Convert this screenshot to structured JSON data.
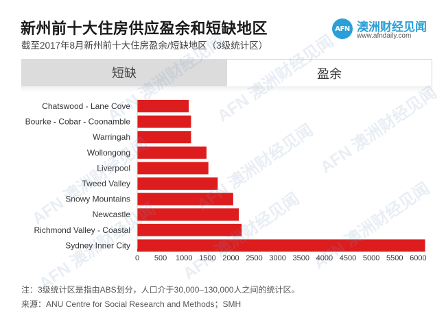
{
  "title": "新州前十大住房供应盈余和短缺地区",
  "subtitle": "截至2017年8月新州前十大住房盈余/短缺地区（3级统计区）",
  "logo": {
    "mark": "AFN",
    "name": "澳洲财经见闻",
    "url": "www.afndaily.com"
  },
  "tabs": {
    "shortage": "短缺",
    "surplus": "盈余"
  },
  "watermark": "AFN 澳洲财经见闻",
  "footer": {
    "note": "注：3级统计区是指由ABS划分，人口介于30,000–130,000人之间的统计区。",
    "source": "来源：ANU Centre for Social Research and Methods；SMH"
  },
  "chart_data": {
    "type": "bar",
    "orientation": "horizontal",
    "categories": [
      "Chatswood - Lane Cove",
      "Bourke - Cobar - Coonamble",
      "Warringah",
      "Wollongong",
      "Liverpool",
      "Tweed Valley",
      "Snowy Mountains",
      "Newcastle",
      "Richmond Valley - Coastal",
      "Sydney Inner City"
    ],
    "values": [
      1100,
      1150,
      1150,
      1480,
      1520,
      1720,
      2050,
      2170,
      2230,
      6150
    ],
    "xlim": [
      0,
      6200
    ],
    "xticks": [
      0,
      500,
      1000,
      1500,
      2000,
      2500,
      3000,
      3500,
      4000,
      4500,
      5000,
      5500,
      6000
    ],
    "bar_color": "#dd1d1d",
    "grid": false
  }
}
